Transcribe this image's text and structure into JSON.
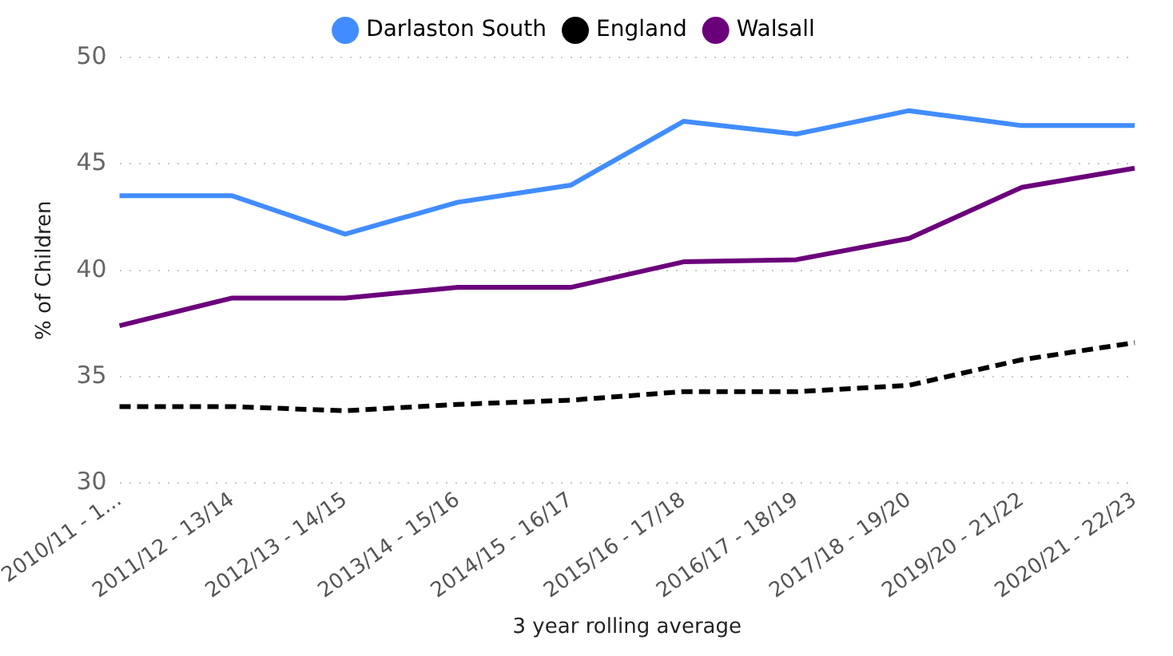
{
  "chart_data": {
    "type": "line",
    "xlabel": "3 year rolling average",
    "ylabel": "% of Children",
    "categories": [
      "2010/11 - 1...",
      "2011/12 - 13/14",
      "2012/13 - 14/15",
      "2013/14 - 15/16",
      "2014/15 - 16/17",
      "2015/16 - 17/18",
      "2016/17 - 18/19",
      "2017/18 - 19/20",
      "2019/20 - 21/22",
      "2020/21 - 22/23"
    ],
    "series": [
      {
        "name": "Darlaston South",
        "color": "#418cff",
        "line_style": "solid",
        "values": [
          43.5,
          43.5,
          41.7,
          43.2,
          44.0,
          47.0,
          46.4,
          47.5,
          46.8,
          46.8
        ]
      },
      {
        "name": "England",
        "color": "#000000",
        "line_style": "dashed",
        "values": [
          33.6,
          33.6,
          33.4,
          33.7,
          33.9,
          34.3,
          34.3,
          34.6,
          35.8,
          36.6
        ]
      },
      {
        "name": "Walsall",
        "color": "#6b007b",
        "line_style": "solid",
        "values": [
          37.4,
          38.7,
          38.7,
          39.2,
          39.2,
          40.4,
          40.5,
          41.5,
          43.9,
          44.8
        ]
      }
    ],
    "ylim": [
      30,
      50
    ],
    "yticks": [
      30,
      35,
      40,
      45,
      50
    ],
    "grid": "y",
    "legend": "top",
    "marker": "none"
  }
}
